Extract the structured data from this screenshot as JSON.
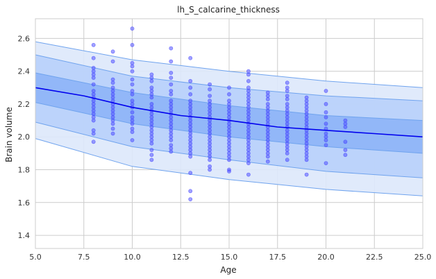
{
  "chart_data": {
    "type": "scatter",
    "title": "lh_S_calcarine_thickness",
    "xlabel": "Age",
    "ylabel": "Brain volume",
    "xlim": [
      5,
      25
    ],
    "ylim": [
      1.32,
      2.72
    ],
    "grid": true,
    "x_ticks": [
      5.0,
      7.5,
      10.0,
      12.5,
      15.0,
      17.5,
      20.0,
      22.5,
      25.0
    ],
    "x_tick_labels": [
      "5.0",
      "7.5",
      "10.0",
      "12.5",
      "15.0",
      "17.5",
      "20.0",
      "22.5",
      "25.0"
    ],
    "y_ticks": [
      1.4,
      1.6,
      1.8,
      2.0,
      2.2,
      2.4,
      2.6
    ],
    "y_tick_labels": [
      "1.4",
      "1.6",
      "1.8",
      "2.0",
      "2.2",
      "2.4",
      "2.6"
    ],
    "colors": {
      "median": "#0000ee",
      "points": "#4444ff",
      "band_outer": "#dde8fb",
      "band_middle": "#b8d0fb",
      "band_inner": "#8db4f7",
      "band_edge": "#6fa3ee",
      "grid": "#cccccc"
    },
    "bands": [
      {
        "name": "outer",
        "x": [
          5,
          10,
          15,
          20,
          25
        ],
        "lower": [
          1.99,
          1.82,
          1.74,
          1.68,
          1.64
        ],
        "upper": [
          2.58,
          2.47,
          2.4,
          2.34,
          2.3
        ]
      },
      {
        "name": "middle",
        "x": [
          5,
          10,
          15,
          20,
          25
        ],
        "lower": [
          2.09,
          1.94,
          1.86,
          1.79,
          1.75
        ],
        "upper": [
          2.5,
          2.37,
          2.3,
          2.25,
          2.22
        ]
      },
      {
        "name": "inner",
        "x": [
          5,
          10,
          15,
          20,
          25
        ],
        "lower": [
          2.21,
          2.08,
          2.0,
          1.94,
          1.9
        ],
        "upper": [
          2.39,
          2.27,
          2.19,
          2.13,
          2.1
        ]
      }
    ],
    "median": {
      "x": [
        5,
        7.5,
        10,
        12.5,
        15,
        17.5,
        20,
        22.5,
        25
      ],
      "y": [
        2.3,
        2.25,
        2.18,
        2.13,
        2.1,
        2.06,
        2.04,
        2.02,
        2.0
      ]
    },
    "points": [
      {
        "x": 8,
        "y": [
          2.56,
          2.48,
          2.42,
          2.4,
          2.38,
          2.36,
          2.32,
          2.28,
          2.26,
          2.24,
          2.22,
          2.2,
          2.18,
          2.16,
          2.14,
          2.12,
          2.1,
          2.04,
          2.02,
          1.97
        ]
      },
      {
        "x": 9,
        "y": [
          2.52,
          2.46,
          2.35,
          2.33,
          2.3,
          2.28,
          2.26,
          2.24,
          2.22,
          2.2,
          2.18,
          2.16,
          2.14,
          2.12,
          2.1,
          2.08,
          2.05,
          2.02
        ]
      },
      {
        "x": 10,
        "y": [
          2.66,
          2.56,
          2.45,
          2.43,
          2.4,
          2.35,
          2.32,
          2.28,
          2.26,
          2.22,
          2.2,
          2.18,
          2.15,
          2.12,
          2.1,
          2.08,
          2.05,
          2.03,
          1.98
        ]
      },
      {
        "x": 11,
        "y": [
          2.38,
          2.36,
          2.34,
          2.3,
          2.28,
          2.26,
          2.24,
          2.2,
          2.18,
          2.16,
          2.14,
          2.12,
          2.1,
          2.08,
          2.06,
          2.04,
          2.02,
          2.0,
          1.98,
          1.96,
          1.92,
          1.89,
          1.86
        ]
      },
      {
        "x": 12,
        "y": [
          2.54,
          2.46,
          2.39,
          2.36,
          2.32,
          2.28,
          2.26,
          2.22,
          2.2,
          2.18,
          2.16,
          2.14,
          2.12,
          2.1,
          2.08,
          2.06,
          2.04,
          2.02,
          2.0,
          1.98,
          1.95,
          1.93,
          1.91
        ]
      },
      {
        "x": 13,
        "y": [
          2.48,
          2.34,
          2.3,
          2.26,
          2.22,
          2.2,
          2.18,
          2.16,
          2.14,
          2.12,
          2.1,
          2.08,
          2.06,
          2.04,
          2.02,
          2.0,
          1.98,
          1.96,
          1.94,
          1.92,
          1.9,
          1.88,
          1.78,
          1.67,
          1.62
        ]
      },
      {
        "x": 14,
        "y": [
          2.32,
          2.29,
          2.25,
          2.22,
          2.2,
          2.18,
          2.16,
          2.14,
          2.12,
          2.1,
          2.08,
          2.06,
          2.04,
          2.02,
          2.0,
          1.98,
          1.96,
          1.94,
          1.92,
          1.9,
          1.88,
          1.86,
          1.82,
          1.8
        ]
      },
      {
        "x": 15,
        "y": [
          2.3,
          2.26,
          2.22,
          2.2,
          2.18,
          2.16,
          2.14,
          2.12,
          2.1,
          2.08,
          2.06,
          2.04,
          2.02,
          2.0,
          1.98,
          1.96,
          1.94,
          1.92,
          1.9,
          1.88,
          1.86,
          1.8,
          1.79
        ]
      },
      {
        "x": 16,
        "y": [
          2.4,
          2.38,
          2.34,
          2.3,
          2.28,
          2.26,
          2.24,
          2.22,
          2.2,
          2.18,
          2.16,
          2.14,
          2.12,
          2.1,
          2.08,
          2.06,
          2.04,
          2.02,
          2.0,
          1.98,
          1.96,
          1.94,
          1.92,
          1.9,
          1.88,
          1.86,
          1.84,
          1.77
        ]
      },
      {
        "x": 17,
        "y": [
          2.27,
          2.25,
          2.23,
          2.2,
          2.18,
          2.16,
          2.14,
          2.12,
          2.1,
          2.08,
          2.06,
          2.04,
          2.02,
          2.0,
          1.98,
          1.96,
          1.94,
          1.92,
          1.9,
          1.88,
          1.85
        ]
      },
      {
        "x": 18,
        "y": [
          2.33,
          2.3,
          2.28,
          2.25,
          2.23,
          2.2,
          2.18,
          2.16,
          2.14,
          2.12,
          2.1,
          2.08,
          2.06,
          2.04,
          2.02,
          2.0,
          1.98,
          1.96,
          1.94,
          1.92,
          1.9,
          1.86
        ]
      },
      {
        "x": 19,
        "y": [
          2.24,
          2.22,
          2.2,
          2.18,
          2.16,
          2.14,
          2.12,
          2.1,
          2.08,
          2.06,
          2.04,
          2.02,
          2.0,
          1.98,
          1.96,
          1.94,
          1.92,
          1.9,
          1.88,
          1.86,
          1.77
        ]
      },
      {
        "x": 20,
        "y": [
          2.28,
          2.2,
          2.15,
          2.12,
          2.08,
          2.05,
          2.02,
          2.0,
          1.98,
          1.95,
          1.84
        ]
      },
      {
        "x": 21,
        "y": [
          2.1,
          2.08,
          2.06,
          1.97,
          1.92,
          1.89
        ]
      }
    ]
  }
}
